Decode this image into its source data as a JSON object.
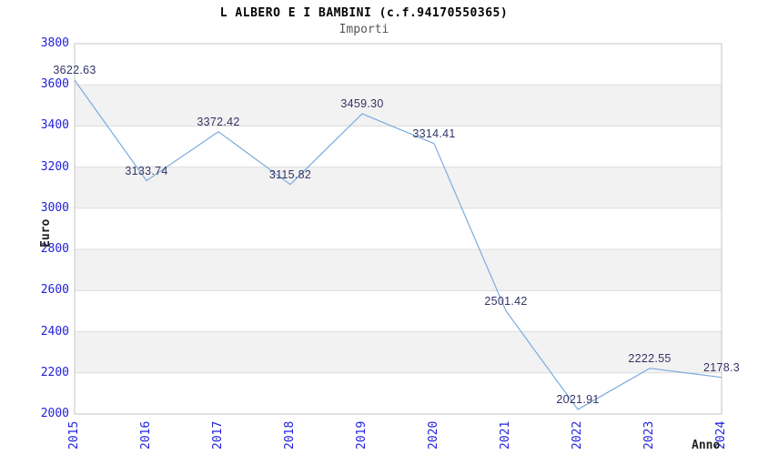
{
  "header": {
    "title": "L ALBERO E I BAMBINI (c.f.94170550365)",
    "subtitle": "Importi"
  },
  "chart_data": {
    "type": "line",
    "title": "L ALBERO E I BAMBINI (c.f.94170550365)",
    "subtitle": "Importi",
    "xlabel": "Anno",
    "ylabel": "Euro",
    "categories": [
      "2015",
      "2016",
      "2017",
      "2018",
      "2019",
      "2020",
      "2021",
      "2022",
      "2023",
      "2024"
    ],
    "series": [
      {
        "name": "Importi",
        "values": [
          3622.63,
          3133.74,
          3372.42,
          3115.82,
          3459.3,
          3314.41,
          2501.42,
          2021.91,
          2222.55,
          2178.3
        ]
      }
    ],
    "point_labels": [
      "3622.63",
      "3133.74",
      "3372.42",
      "3115.82",
      "3459.30",
      "3314.41",
      "2501.42",
      "2021.91",
      "2222.55",
      "2178.3"
    ],
    "ylim": [
      2000,
      3800
    ],
    "ytick_step": 200,
    "ytick_labels": [
      "2000",
      "2200",
      "2400",
      "2600",
      "2800",
      "3000",
      "3200",
      "3400",
      "3600",
      "3800"
    ],
    "grid": "horizontal gridlines with alternating shaded bands",
    "legend": "none",
    "colors": {
      "line": "#7aacde",
      "tick_label": "#2222dd",
      "data_label": "#333366",
      "band": "#f2f2f2",
      "gridline": "#dddddd",
      "plot_border": "#c6c6c6",
      "title": "#000000",
      "subtitle": "#555555",
      "axis_title": "#222222",
      "background": "#ffffff"
    }
  }
}
